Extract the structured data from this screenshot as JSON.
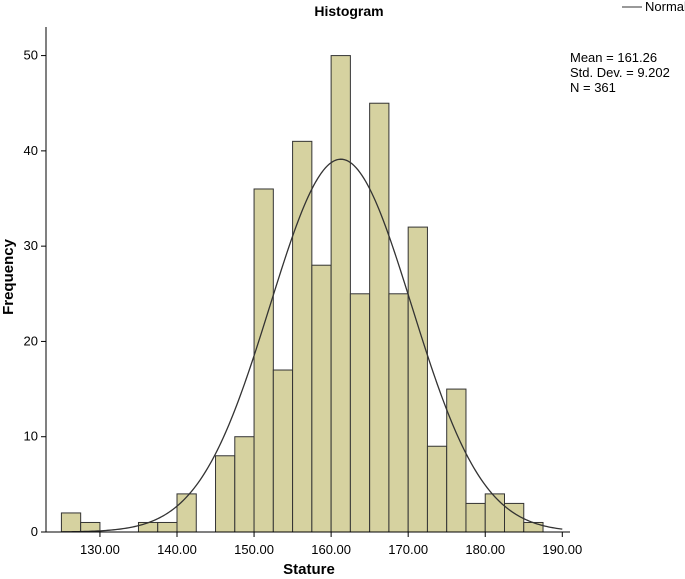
{
  "chart_data": {
    "type": "bar",
    "title": "Histogram",
    "xlabel": "Stature",
    "ylabel": "Frequency",
    "xlim": [
      123,
      191
    ],
    "ylim": [
      0,
      53
    ],
    "bin_width": 2.5,
    "x_ticks": [
      130,
      140,
      150,
      160,
      170,
      180,
      190
    ],
    "x_tick_labels": [
      "130.00",
      "140.00",
      "150.00",
      "160.00",
      "170.00",
      "180.00",
      "190.00"
    ],
    "y_ticks": [
      0,
      10,
      20,
      30,
      40,
      50
    ],
    "y_tick_labels": [
      "0",
      "10",
      "20",
      "30",
      "40",
      "50"
    ],
    "bins": [
      {
        "x0": 125,
        "x1": 127.5,
        "count": 2
      },
      {
        "x0": 127.5,
        "x1": 130,
        "count": 1
      },
      {
        "x0": 135,
        "x1": 137.5,
        "count": 1
      },
      {
        "x0": 137.5,
        "x1": 140,
        "count": 1
      },
      {
        "x0": 140,
        "x1": 142.5,
        "count": 4
      },
      {
        "x0": 145,
        "x1": 147.5,
        "count": 8
      },
      {
        "x0": 147.5,
        "x1": 150,
        "count": 10
      },
      {
        "x0": 150,
        "x1": 152.5,
        "count": 36
      },
      {
        "x0": 152.5,
        "x1": 155,
        "count": 17
      },
      {
        "x0": 155,
        "x1": 157.5,
        "count": 41
      },
      {
        "x0": 157.5,
        "x1": 160,
        "count": 28
      },
      {
        "x0": 160,
        "x1": 162.5,
        "count": 50
      },
      {
        "x0": 162.5,
        "x1": 165,
        "count": 25
      },
      {
        "x0": 165,
        "x1": 167.5,
        "count": 45
      },
      {
        "x0": 167.5,
        "x1": 170,
        "count": 25
      },
      {
        "x0": 170,
        "x1": 172.5,
        "count": 32
      },
      {
        "x0": 172.5,
        "x1": 175,
        "count": 9
      },
      {
        "x0": 175,
        "x1": 177.5,
        "count": 15
      },
      {
        "x0": 177.5,
        "x1": 180,
        "count": 3
      },
      {
        "x0": 180,
        "x1": 182.5,
        "count": 4
      },
      {
        "x0": 182.5,
        "x1": 185,
        "count": 3
      },
      {
        "x0": 185,
        "x1": 187.5,
        "count": 1
      }
    ],
    "normal_curve": {
      "mean": 161.26,
      "std_dev": 9.202,
      "n": 361
    },
    "legend": {
      "entries": [
        "Normal"
      ],
      "placement": "top-right"
    },
    "stats_text": [
      "Mean = 161.26",
      "Std. Dev. = 9.202",
      "N = 361"
    ],
    "grid": false,
    "colors": {
      "bar_fill": "#d6d2a0",
      "bar_stroke": "#333333",
      "curve": "#333333",
      "axis": "#000000"
    }
  }
}
